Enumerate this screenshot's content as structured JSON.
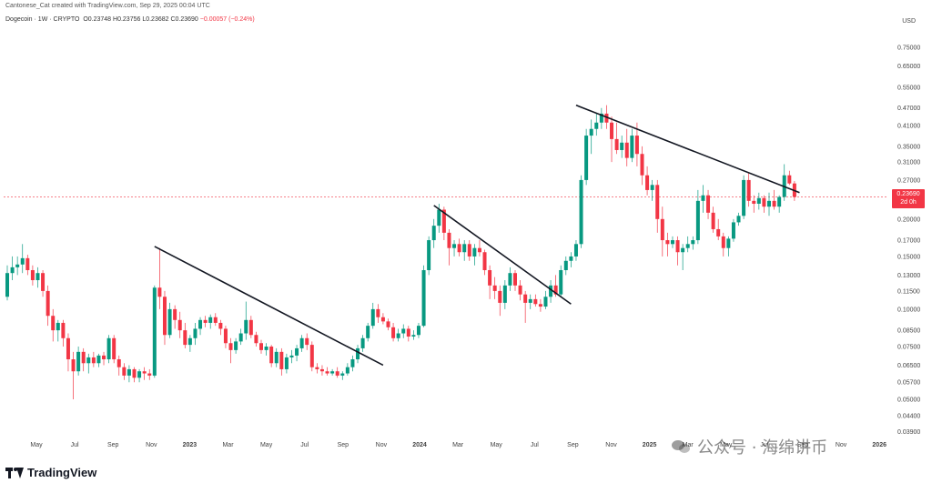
{
  "header": {
    "credit": "Cantonese_Cat created with TradingView.com, Sep 29, 2025 00:04 UTC",
    "symbol": "Dogecoin · 1W · CRYPTO",
    "ohlc": "O0.23748 H0.23756 L0.23682 C0.23690",
    "change": "−0.00057 (−0.24%)",
    "currency": "USD"
  },
  "price_tag": {
    "price": "0.23690",
    "countdown": "2d 0h"
  },
  "footer": {
    "brand": "TradingView",
    "watermark": "公众号 · 海绵讲币"
  },
  "colors": {
    "up": "#089981",
    "down": "#f23645",
    "trendline": "#131722"
  },
  "chart_data": {
    "type": "candlestick",
    "scale": "log",
    "ylim": [
      0.037,
      0.85
    ],
    "y_ticks": [
      "0.75000",
      "0.65000",
      "0.55000",
      "0.47000",
      "0.41000",
      "0.35000",
      "0.31000",
      "0.27000",
      "0.20000",
      "0.17000",
      "0.15000",
      "0.13000",
      "0.11500",
      "0.10000",
      "0.08500",
      "0.07500",
      "0.06500",
      "0.05700",
      "0.05000",
      "0.04400",
      "0.03900"
    ],
    "x_ticks": [
      "May",
      "Jul",
      "Sep",
      "Nov",
      "2023",
      "Mar",
      "May",
      "Jul",
      "Sep",
      "Nov",
      "2024",
      "Mar",
      "May",
      "Jul",
      "Sep",
      "Nov",
      "2025",
      "Mar",
      "May",
      "Jul",
      "Sep",
      "Nov",
      "2026"
    ],
    "candles": [
      [
        0.11,
        0.14,
        0.107,
        0.132
      ],
      [
        0.132,
        0.15,
        0.125,
        0.138
      ],
      [
        0.138,
        0.15,
        0.13,
        0.141
      ],
      [
        0.141,
        0.165,
        0.132,
        0.148
      ],
      [
        0.148,
        0.152,
        0.13,
        0.135
      ],
      [
        0.135,
        0.14,
        0.12,
        0.125
      ],
      [
        0.125,
        0.138,
        0.118,
        0.132
      ],
      [
        0.132,
        0.135,
        0.11,
        0.115
      ],
      [
        0.115,
        0.12,
        0.088,
        0.095
      ],
      [
        0.095,
        0.1,
        0.078,
        0.085
      ],
      [
        0.085,
        0.092,
        0.078,
        0.09
      ],
      [
        0.09,
        0.092,
        0.075,
        0.08
      ],
      [
        0.08,
        0.083,
        0.062,
        0.068
      ],
      [
        0.068,
        0.072,
        0.05,
        0.062
      ],
      [
        0.062,
        0.075,
        0.06,
        0.072
      ],
      [
        0.072,
        0.074,
        0.062,
        0.066
      ],
      [
        0.066,
        0.071,
        0.061,
        0.069
      ],
      [
        0.069,
        0.072,
        0.064,
        0.066
      ],
      [
        0.066,
        0.071,
        0.064,
        0.07
      ],
      [
        0.07,
        0.072,
        0.065,
        0.068
      ],
      [
        0.068,
        0.082,
        0.066,
        0.08
      ],
      [
        0.08,
        0.082,
        0.066,
        0.068
      ],
      [
        0.068,
        0.07,
        0.06,
        0.064
      ],
      [
        0.064,
        0.066,
        0.058,
        0.06
      ],
      [
        0.06,
        0.065,
        0.057,
        0.063
      ],
      [
        0.063,
        0.064,
        0.057,
        0.059
      ],
      [
        0.059,
        0.063,
        0.057,
        0.062
      ],
      [
        0.062,
        0.064,
        0.058,
        0.061
      ],
      [
        0.061,
        0.063,
        0.058,
        0.06
      ],
      [
        0.06,
        0.12,
        0.059,
        0.118
      ],
      [
        0.118,
        0.16,
        0.1,
        0.11
      ],
      [
        0.11,
        0.115,
        0.076,
        0.082
      ],
      [
        0.082,
        0.105,
        0.08,
        0.1
      ],
      [
        0.1,
        0.103,
        0.086,
        0.092
      ],
      [
        0.092,
        0.098,
        0.08,
        0.085
      ],
      [
        0.085,
        0.09,
        0.074,
        0.076
      ],
      [
        0.076,
        0.082,
        0.072,
        0.08
      ],
      [
        0.08,
        0.09,
        0.076,
        0.086
      ],
      [
        0.086,
        0.094,
        0.082,
        0.092
      ],
      [
        0.092,
        0.095,
        0.087,
        0.09
      ],
      [
        0.09,
        0.096,
        0.086,
        0.094
      ],
      [
        0.094,
        0.097,
        0.088,
        0.09
      ],
      [
        0.09,
        0.092,
        0.082,
        0.086
      ],
      [
        0.086,
        0.088,
        0.074,
        0.077
      ],
      [
        0.077,
        0.08,
        0.066,
        0.073
      ],
      [
        0.073,
        0.08,
        0.071,
        0.078
      ],
      [
        0.078,
        0.086,
        0.076,
        0.083
      ],
      [
        0.083,
        0.106,
        0.079,
        0.092
      ],
      [
        0.092,
        0.095,
        0.08,
        0.082
      ],
      [
        0.082,
        0.084,
        0.075,
        0.077
      ],
      [
        0.077,
        0.079,
        0.071,
        0.073
      ],
      [
        0.073,
        0.077,
        0.07,
        0.075
      ],
      [
        0.075,
        0.076,
        0.064,
        0.066
      ],
      [
        0.066,
        0.074,
        0.064,
        0.072
      ],
      [
        0.072,
        0.074,
        0.06,
        0.063
      ],
      [
        0.063,
        0.071,
        0.061,
        0.069
      ],
      [
        0.069,
        0.073,
        0.066,
        0.07
      ],
      [
        0.07,
        0.076,
        0.067,
        0.074
      ],
      [
        0.074,
        0.082,
        0.072,
        0.08
      ],
      [
        0.08,
        0.083,
        0.073,
        0.076
      ],
      [
        0.076,
        0.078,
        0.062,
        0.064
      ],
      [
        0.064,
        0.066,
        0.061,
        0.063
      ],
      [
        0.063,
        0.065,
        0.06,
        0.062
      ],
      [
        0.062,
        0.064,
        0.06,
        0.061
      ],
      [
        0.061,
        0.063,
        0.06,
        0.062
      ],
      [
        0.062,
        0.064,
        0.059,
        0.06
      ],
      [
        0.06,
        0.062,
        0.058,
        0.061
      ],
      [
        0.061,
        0.066,
        0.06,
        0.064
      ],
      [
        0.064,
        0.07,
        0.062,
        0.068
      ],
      [
        0.068,
        0.076,
        0.066,
        0.074
      ],
      [
        0.074,
        0.082,
        0.072,
        0.08
      ],
      [
        0.08,
        0.09,
        0.078,
        0.088
      ],
      [
        0.088,
        0.105,
        0.086,
        0.1
      ],
      [
        0.1,
        0.104,
        0.09,
        0.094
      ],
      [
        0.094,
        0.097,
        0.089,
        0.091
      ],
      [
        0.091,
        0.093,
        0.085,
        0.087
      ],
      [
        0.087,
        0.09,
        0.078,
        0.08
      ],
      [
        0.08,
        0.086,
        0.078,
        0.083
      ],
      [
        0.083,
        0.089,
        0.08,
        0.086
      ],
      [
        0.086,
        0.088,
        0.078,
        0.081
      ],
      [
        0.081,
        0.085,
        0.079,
        0.082
      ],
      [
        0.082,
        0.09,
        0.08,
        0.088
      ],
      [
        0.088,
        0.14,
        0.087,
        0.135
      ],
      [
        0.135,
        0.175,
        0.13,
        0.17
      ],
      [
        0.17,
        0.2,
        0.16,
        0.19
      ],
      [
        0.19,
        0.225,
        0.18,
        0.215
      ],
      [
        0.215,
        0.22,
        0.17,
        0.18
      ],
      [
        0.18,
        0.185,
        0.14,
        0.16
      ],
      [
        0.16,
        0.17,
        0.15,
        0.165
      ],
      [
        0.165,
        0.172,
        0.15,
        0.155
      ],
      [
        0.155,
        0.17,
        0.145,
        0.165
      ],
      [
        0.165,
        0.17,
        0.145,
        0.15
      ],
      [
        0.15,
        0.165,
        0.14,
        0.16
      ],
      [
        0.16,
        0.17,
        0.15,
        0.155
      ],
      [
        0.155,
        0.158,
        0.13,
        0.135
      ],
      [
        0.135,
        0.14,
        0.108,
        0.12
      ],
      [
        0.12,
        0.128,
        0.108,
        0.115
      ],
      [
        0.115,
        0.12,
        0.095,
        0.105
      ],
      [
        0.105,
        0.125,
        0.1,
        0.12
      ],
      [
        0.12,
        0.138,
        0.115,
        0.132
      ],
      [
        0.132,
        0.135,
        0.115,
        0.12
      ],
      [
        0.12,
        0.125,
        0.107,
        0.112
      ],
      [
        0.112,
        0.115,
        0.09,
        0.105
      ],
      [
        0.105,
        0.112,
        0.1,
        0.108
      ],
      [
        0.108,
        0.112,
        0.102,
        0.104
      ],
      [
        0.104,
        0.108,
        0.098,
        0.102
      ],
      [
        0.102,
        0.115,
        0.1,
        0.11
      ],
      [
        0.11,
        0.125,
        0.105,
        0.12
      ],
      [
        0.12,
        0.13,
        0.11,
        0.112
      ],
      [
        0.112,
        0.14,
        0.11,
        0.135
      ],
      [
        0.135,
        0.15,
        0.13,
        0.145
      ],
      [
        0.145,
        0.155,
        0.138,
        0.15
      ],
      [
        0.15,
        0.17,
        0.145,
        0.165
      ],
      [
        0.165,
        0.28,
        0.16,
        0.27
      ],
      [
        0.27,
        0.4,
        0.26,
        0.38
      ],
      [
        0.38,
        0.43,
        0.33,
        0.4
      ],
      [
        0.4,
        0.45,
        0.38,
        0.42
      ],
      [
        0.42,
        0.47,
        0.4,
        0.45
      ],
      [
        0.45,
        0.48,
        0.4,
        0.42
      ],
      [
        0.42,
        0.44,
        0.31,
        0.37
      ],
      [
        0.37,
        0.42,
        0.33,
        0.34
      ],
      [
        0.34,
        0.38,
        0.32,
        0.36
      ],
      [
        0.36,
        0.4,
        0.3,
        0.32
      ],
      [
        0.32,
        0.4,
        0.31,
        0.38
      ],
      [
        0.38,
        0.42,
        0.3,
        0.33
      ],
      [
        0.33,
        0.35,
        0.26,
        0.28
      ],
      [
        0.28,
        0.3,
        0.24,
        0.25
      ],
      [
        0.25,
        0.27,
        0.23,
        0.26
      ],
      [
        0.26,
        0.27,
        0.18,
        0.2
      ],
      [
        0.2,
        0.22,
        0.15,
        0.17
      ],
      [
        0.17,
        0.18,
        0.15,
        0.165
      ],
      [
        0.165,
        0.175,
        0.16,
        0.17
      ],
      [
        0.17,
        0.175,
        0.14,
        0.155
      ],
      [
        0.155,
        0.165,
        0.135,
        0.16
      ],
      [
        0.16,
        0.175,
        0.155,
        0.165
      ],
      [
        0.165,
        0.175,
        0.158,
        0.17
      ],
      [
        0.17,
        0.25,
        0.165,
        0.23
      ],
      [
        0.23,
        0.26,
        0.21,
        0.24
      ],
      [
        0.24,
        0.25,
        0.2,
        0.21
      ],
      [
        0.21,
        0.22,
        0.18,
        0.185
      ],
      [
        0.185,
        0.2,
        0.17,
        0.175
      ],
      [
        0.175,
        0.18,
        0.15,
        0.16
      ],
      [
        0.16,
        0.175,
        0.15,
        0.172
      ],
      [
        0.172,
        0.2,
        0.168,
        0.195
      ],
      [
        0.195,
        0.21,
        0.19,
        0.205
      ],
      [
        0.205,
        0.28,
        0.2,
        0.27
      ],
      [
        0.27,
        0.285,
        0.22,
        0.23
      ],
      [
        0.23,
        0.24,
        0.21,
        0.225
      ],
      [
        0.225,
        0.245,
        0.215,
        0.235
      ],
      [
        0.235,
        0.24,
        0.21,
        0.22
      ],
      [
        0.22,
        0.245,
        0.205,
        0.23
      ],
      [
        0.23,
        0.25,
        0.215,
        0.22
      ],
      [
        0.22,
        0.24,
        0.21,
        0.237
      ],
      [
        0.237,
        0.305,
        0.23,
        0.28
      ],
      [
        0.28,
        0.29,
        0.26,
        0.263
      ],
      [
        0.263,
        0.268,
        0.23,
        0.237
      ]
    ],
    "trendlines": [
      {
        "from": [
          29,
          0.162
        ],
        "to": [
          74,
          0.065
        ]
      },
      {
        "from": [
          84,
          0.222
        ],
        "to": [
          111,
          0.104
        ]
      },
      {
        "from": [
          112,
          0.48
        ],
        "to": [
          156,
          0.245
        ]
      }
    ],
    "last_price": 0.2369
  }
}
